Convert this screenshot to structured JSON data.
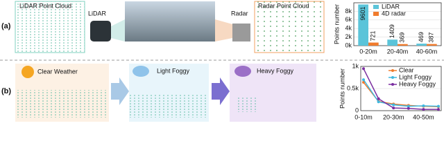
{
  "figure": {
    "panel_a": "(a)",
    "panel_b": "(b)",
    "lidar_cloud": "LiDAR Point Cloud",
    "lidar": "LiDAR",
    "radar": "Radar",
    "radar_cloud": "Radar Point Cloud",
    "clear": "Clear Weather",
    "light": "Light Foggy",
    "heavy": "Heavy Foggy"
  },
  "chart_data": [
    {
      "type": "bar",
      "ylabel": "Points number",
      "categories": [
        "0-20m",
        "20-40m",
        "40-60m"
      ],
      "series": [
        {
          "name": "LiDAR",
          "color": "#5bc4d9",
          "values": [
            9601,
            1409,
            469
          ]
        },
        {
          "name": "4D radar",
          "color": "#f07c2e",
          "values": [
            721,
            369,
            387
          ]
        }
      ],
      "ylim": [
        0,
        10000
      ],
      "yticks": [
        {
          "value": 0,
          "label": "0k"
        },
        {
          "value": 2000,
          "label": "2k"
        },
        {
          "value": 4000,
          "label": "4k"
        },
        {
          "value": 6000,
          "label": "6k"
        },
        {
          "value": 8000,
          "label": "8k"
        }
      ],
      "grid": true
    },
    {
      "type": "line",
      "ylabel": "Points number",
      "categories": [
        "0-10m",
        null,
        "20-30m",
        null,
        "40-50m",
        null
      ],
      "series": [
        {
          "name": "Clear",
          "color": "#f07c2e",
          "values": [
            640,
            210,
            150,
            120,
            100,
            90
          ]
        },
        {
          "name": "Light Foggy",
          "color": "#3fb8e0",
          "values": [
            700,
            200,
            130,
            100,
            110,
            100
          ]
        },
        {
          "name": "Heavy Foggy",
          "color": "#7a2ea0",
          "values": [
            950,
            270,
            60,
            50,
            30,
            30
          ]
        }
      ],
      "ylim": [
        0,
        1000
      ],
      "yticks": [
        0,
        {
          "value": 500,
          "label": "0.5k"
        },
        {
          "value": 1000,
          "label": "1k"
        }
      ],
      "grid": true
    }
  ]
}
